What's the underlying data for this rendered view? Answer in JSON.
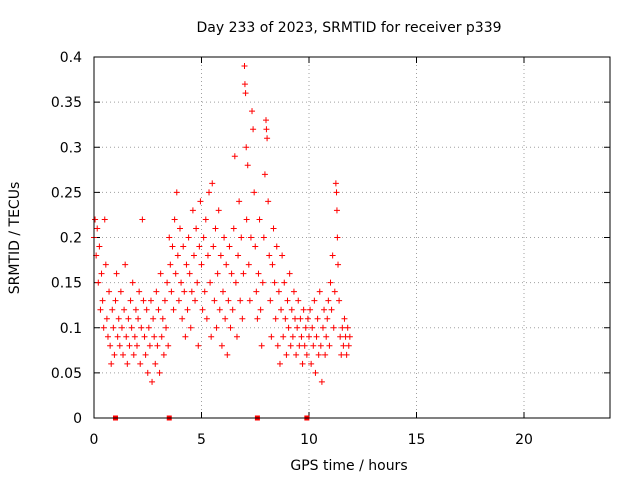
{
  "chart_data": {
    "type": "scatter",
    "title": "Day 233 of 2023, SRMTID for receiver p339",
    "xlabel": "GPS time / hours",
    "ylabel": "SRMTID / TECUs",
    "xlim": [
      0,
      24
    ],
    "ylim": [
      0,
      0.4
    ],
    "grid": true,
    "x_ticks": [
      0,
      5,
      10,
      15,
      20
    ],
    "x_tick_labels": [
      "0",
      "5",
      "10",
      "15",
      "20"
    ],
    "y_ticks": [
      0,
      0.05,
      0.1,
      0.15,
      0.2,
      0.25,
      0.3,
      0.35,
      0.4
    ],
    "y_tick_labels": [
      "0",
      "0.05",
      "0.1",
      "0.15",
      "0.2",
      "0.25",
      "0.3",
      "0.35",
      "0.4"
    ],
    "marker_color": "#ff0000",
    "marker": "+",
    "time_range_hours": [
      0.0,
      11.9
    ],
    "typical_range": [
      0.05,
      0.22
    ],
    "median_estimate": 0.11,
    "baseline_markers_x": [
      1.0,
      3.5,
      7.6,
      9.9
    ],
    "series": [
      {
        "name": "SRMTID",
        "points": [
          [
            0.0,
            0.2
          ],
          [
            0.05,
            0.22
          ],
          [
            0.1,
            0.18
          ],
          [
            0.15,
            0.21
          ],
          [
            0.2,
            0.15
          ],
          [
            0.25,
            0.19
          ],
          [
            0.3,
            0.12
          ],
          [
            0.35,
            0.16
          ],
          [
            0.4,
            0.13
          ],
          [
            0.45,
            0.1
          ],
          [
            0.5,
            0.22
          ],
          [
            0.55,
            0.17
          ],
          [
            0.6,
            0.11
          ],
          [
            0.65,
            0.09
          ],
          [
            0.7,
            0.14
          ],
          [
            0.75,
            0.08
          ],
          [
            0.8,
            0.06
          ],
          [
            0.85,
            0.12
          ],
          [
            0.9,
            0.1
          ],
          [
            0.95,
            0.07
          ],
          [
            1.0,
            0.13
          ],
          [
            1.05,
            0.16
          ],
          [
            1.1,
            0.09
          ],
          [
            1.15,
            0.11
          ],
          [
            1.2,
            0.08
          ],
          [
            1.25,
            0.14
          ],
          [
            1.3,
            0.1
          ],
          [
            1.35,
            0.07
          ],
          [
            1.4,
            0.12
          ],
          [
            1.45,
            0.17
          ],
          [
            1.5,
            0.09
          ],
          [
            1.55,
            0.06
          ],
          [
            1.6,
            0.11
          ],
          [
            1.65,
            0.08
          ],
          [
            1.7,
            0.13
          ],
          [
            1.75,
            0.1
          ],
          [
            1.8,
            0.15
          ],
          [
            1.85,
            0.07
          ],
          [
            1.9,
            0.09
          ],
          [
            1.95,
            0.12
          ],
          [
            2.0,
            0.08
          ],
          [
            2.05,
            0.11
          ],
          [
            2.1,
            0.14
          ],
          [
            2.15,
            0.06
          ],
          [
            2.2,
            0.1
          ],
          [
            2.25,
            0.22
          ],
          [
            2.3,
            0.13
          ],
          [
            2.35,
            0.09
          ],
          [
            2.4,
            0.07
          ],
          [
            2.45,
            0.12
          ],
          [
            2.5,
            0.05
          ],
          [
            2.55,
            0.1
          ],
          [
            2.6,
            0.08
          ],
          [
            2.65,
            0.13
          ],
          [
            2.7,
            0.04
          ],
          [
            2.75,
            0.11
          ],
          [
            2.8,
            0.09
          ],
          [
            2.85,
            0.06
          ],
          [
            2.9,
            0.14
          ],
          [
            2.95,
            0.08
          ],
          [
            3.0,
            0.12
          ],
          [
            3.05,
            0.05
          ],
          [
            3.1,
            0.16
          ],
          [
            3.15,
            0.09
          ],
          [
            3.2,
            0.11
          ],
          [
            3.25,
            0.07
          ],
          [
            3.3,
            0.13
          ],
          [
            3.35,
            0.1
          ],
          [
            3.4,
            0.15
          ],
          [
            3.45,
            0.08
          ],
          [
            3.5,
            0.2
          ],
          [
            3.55,
            0.17
          ],
          [
            3.6,
            0.14
          ],
          [
            3.65,
            0.19
          ],
          [
            3.7,
            0.12
          ],
          [
            3.75,
            0.22
          ],
          [
            3.8,
            0.16
          ],
          [
            3.85,
            0.25
          ],
          [
            3.9,
            0.18
          ],
          [
            3.95,
            0.13
          ],
          [
            4.0,
            0.21
          ],
          [
            4.05,
            0.15
          ],
          [
            4.1,
            0.11
          ],
          [
            4.15,
            0.19
          ],
          [
            4.2,
            0.14
          ],
          [
            4.25,
            0.09
          ],
          [
            4.3,
            0.17
          ],
          [
            4.35,
            0.12
          ],
          [
            4.4,
            0.2
          ],
          [
            4.45,
            0.16
          ],
          [
            4.5,
            0.1
          ],
          [
            4.55,
            0.14
          ],
          [
            4.6,
            0.23
          ],
          [
            4.65,
            0.18
          ],
          [
            4.7,
            0.13
          ],
          [
            4.75,
            0.21
          ],
          [
            4.8,
            0.15
          ],
          [
            4.85,
            0.08
          ],
          [
            4.9,
            0.19
          ],
          [
            4.95,
            0.24
          ],
          [
            5.0,
            0.17
          ],
          [
            5.05,
            0.12
          ],
          [
            5.1,
            0.2
          ],
          [
            5.15,
            0.14
          ],
          [
            5.2,
            0.22
          ],
          [
            5.25,
            0.11
          ],
          [
            5.3,
            0.18
          ],
          [
            5.35,
            0.25
          ],
          [
            5.4,
            0.15
          ],
          [
            5.45,
            0.09
          ],
          [
            5.5,
            0.26
          ],
          [
            5.55,
            0.19
          ],
          [
            5.6,
            0.13
          ],
          [
            5.65,
            0.21
          ],
          [
            5.7,
            0.1
          ],
          [
            5.75,
            0.16
          ],
          [
            5.8,
            0.23
          ],
          [
            5.85,
            0.12
          ],
          [
            5.9,
            0.18
          ],
          [
            5.95,
            0.08
          ],
          [
            6.0,
            0.14
          ],
          [
            6.05,
            0.2
          ],
          [
            6.1,
            0.11
          ],
          [
            6.15,
            0.17
          ],
          [
            6.2,
            0.07
          ],
          [
            6.25,
            0.13
          ],
          [
            6.3,
            0.19
          ],
          [
            6.35,
            0.1
          ],
          [
            6.4,
            0.16
          ],
          [
            6.45,
            0.12
          ],
          [
            6.5,
            0.21
          ],
          [
            6.55,
            0.29
          ],
          [
            6.6,
            0.15
          ],
          [
            6.65,
            0.09
          ],
          [
            6.7,
            0.18
          ],
          [
            6.75,
            0.24
          ],
          [
            6.8,
            0.13
          ],
          [
            6.85,
            0.2
          ],
          [
            6.9,
            0.11
          ],
          [
            6.95,
            0.16
          ],
          [
            7.0,
            0.39
          ],
          [
            7.02,
            0.37
          ],
          [
            7.05,
            0.36
          ],
          [
            7.08,
            0.3
          ],
          [
            7.1,
            0.22
          ],
          [
            7.15,
            0.28
          ],
          [
            7.2,
            0.17
          ],
          [
            7.25,
            0.13
          ],
          [
            7.3,
            0.2
          ],
          [
            7.35,
            0.34
          ],
          [
            7.4,
            0.32
          ],
          [
            7.45,
            0.25
          ],
          [
            7.5,
            0.19
          ],
          [
            7.55,
            0.14
          ],
          [
            7.6,
            0.11
          ],
          [
            7.65,
            0.16
          ],
          [
            7.7,
            0.22
          ],
          [
            7.75,
            0.12
          ],
          [
            7.8,
            0.08
          ],
          [
            7.85,
            0.15
          ],
          [
            7.9,
            0.2
          ],
          [
            7.95,
            0.27
          ],
          [
            8.0,
            0.33
          ],
          [
            8.02,
            0.32
          ],
          [
            8.05,
            0.31
          ],
          [
            8.1,
            0.24
          ],
          [
            8.15,
            0.18
          ],
          [
            8.2,
            0.13
          ],
          [
            8.25,
            0.09
          ],
          [
            8.3,
            0.17
          ],
          [
            8.35,
            0.21
          ],
          [
            8.4,
            0.15
          ],
          [
            8.45,
            0.11
          ],
          [
            8.5,
            0.19
          ],
          [
            8.55,
            0.08
          ],
          [
            8.6,
            0.14
          ],
          [
            8.65,
            0.06
          ],
          [
            8.7,
            0.12
          ],
          [
            8.75,
            0.18
          ],
          [
            8.8,
            0.09
          ],
          [
            8.85,
            0.15
          ],
          [
            8.9,
            0.11
          ],
          [
            8.95,
            0.07
          ],
          [
            9.0,
            0.13
          ],
          [
            9.05,
            0.1
          ],
          [
            9.1,
            0.16
          ],
          [
            9.15,
            0.08
          ],
          [
            9.2,
            0.12
          ],
          [
            9.25,
            0.09
          ],
          [
            9.3,
            0.14
          ],
          [
            9.35,
            0.11
          ],
          [
            9.4,
            0.07
          ],
          [
            9.45,
            0.1
          ],
          [
            9.5,
            0.13
          ],
          [
            9.55,
            0.08
          ],
          [
            9.6,
            0.11
          ],
          [
            9.65,
            0.09
          ],
          [
            9.7,
            0.06
          ],
          [
            9.75,
            0.12
          ],
          [
            9.8,
            0.08
          ],
          [
            9.85,
            0.1
          ],
          [
            9.9,
            0.07
          ],
          [
            9.95,
            0.11
          ],
          [
            10.0,
            0.09
          ],
          [
            10.05,
            0.12
          ],
          [
            10.1,
            0.06
          ],
          [
            10.15,
            0.1
          ],
          [
            10.2,
            0.08
          ],
          [
            10.25,
            0.13
          ],
          [
            10.3,
            0.05
          ],
          [
            10.35,
            0.09
          ],
          [
            10.4,
            0.11
          ],
          [
            10.45,
            0.07
          ],
          [
            10.5,
            0.14
          ],
          [
            10.55,
            0.08
          ],
          [
            10.6,
            0.04
          ],
          [
            10.65,
            0.1
          ],
          [
            10.7,
            0.12
          ],
          [
            10.75,
            0.07
          ],
          [
            10.8,
            0.09
          ],
          [
            10.85,
            0.11
          ],
          [
            10.9,
            0.13
          ],
          [
            10.95,
            0.08
          ],
          [
            11.0,
            0.15
          ],
          [
            11.05,
            0.12
          ],
          [
            11.1,
            0.18
          ],
          [
            11.15,
            0.1
          ],
          [
            11.2,
            0.14
          ],
          [
            11.25,
            0.26
          ],
          [
            11.28,
            0.25
          ],
          [
            11.3,
            0.23
          ],
          [
            11.32,
            0.2
          ],
          [
            11.35,
            0.17
          ],
          [
            11.4,
            0.13
          ],
          [
            11.45,
            0.09
          ],
          [
            11.5,
            0.07
          ],
          [
            11.55,
            0.1
          ],
          [
            11.6,
            0.08
          ],
          [
            11.65,
            0.11
          ],
          [
            11.7,
            0.09
          ],
          [
            11.75,
            0.07
          ],
          [
            11.8,
            0.1
          ],
          [
            11.85,
            0.08
          ],
          [
            11.9,
            0.09
          ]
        ]
      }
    ]
  }
}
